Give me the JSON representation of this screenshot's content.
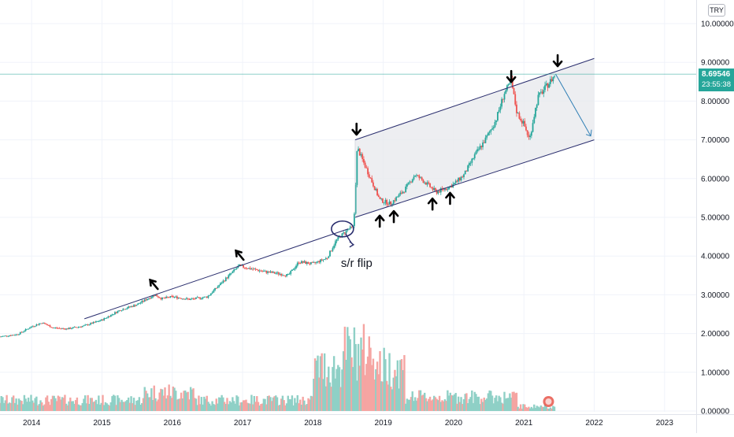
{
  "currency": "TRY",
  "last_price": {
    "value": "8.69546",
    "countdown": "23:55:38",
    "color": "#26a69a"
  },
  "annotation_text": "s/r flip",
  "colors": {
    "up": "#26a69a",
    "down": "#ef5350",
    "up_volume": "#8fd0c6",
    "down_volume": "#f5a5a2",
    "trendline": "#2a2e6e",
    "channel_fill": "#e9eaee",
    "projection": "#2f7fb5",
    "arrow": "#000000",
    "last_price_line": "#26a69a"
  },
  "chart_data": {
    "type": "candlestick",
    "title": "",
    "x_ticks": [
      "2014",
      "2015",
      "2016",
      "2017",
      "2018",
      "2019",
      "2020",
      "2021",
      "2022",
      "2023"
    ],
    "y_ticks": [
      "0.00000",
      "1.00000",
      "2.00000",
      "3.00000",
      "4.00000",
      "5.00000",
      "6.00000",
      "7.00000",
      "8.00000",
      "9.00000",
      "10.00000"
    ],
    "ylim": [
      0,
      10.2
    ],
    "xlim": [
      2013.55,
      2023.45
    ],
    "last_price": 8.69546,
    "price_path": [
      [
        2013.55,
        1.92
      ],
      [
        2013.8,
        1.98
      ],
      [
        2014.0,
        2.18
      ],
      [
        2014.15,
        2.28
      ],
      [
        2014.3,
        2.15
      ],
      [
        2014.5,
        2.12
      ],
      [
        2014.75,
        2.2
      ],
      [
        2015.0,
        2.35
      ],
      [
        2015.25,
        2.6
      ],
      [
        2015.5,
        2.75
      ],
      [
        2015.65,
        2.9
      ],
      [
        2015.75,
        3.0
      ],
      [
        2015.85,
        2.9
      ],
      [
        2016.0,
        2.95
      ],
      [
        2016.25,
        2.88
      ],
      [
        2016.5,
        2.95
      ],
      [
        2016.75,
        3.4
      ],
      [
        2016.95,
        3.75
      ],
      [
        2017.05,
        3.7
      ],
      [
        2017.3,
        3.6
      ],
      [
        2017.5,
        3.55
      ],
      [
        2017.65,
        3.5
      ],
      [
        2017.8,
        3.85
      ],
      [
        2018.0,
        3.8
      ],
      [
        2018.2,
        3.95
      ],
      [
        2018.33,
        4.4
      ],
      [
        2018.5,
        4.7
      ],
      [
        2018.58,
        4.75
      ],
      [
        2018.63,
        6.8
      ],
      [
        2018.7,
        6.5
      ],
      [
        2018.82,
        6.0
      ],
      [
        2018.95,
        5.45
      ],
      [
        2019.1,
        5.35
      ],
      [
        2019.3,
        5.7
      ],
      [
        2019.45,
        6.1
      ],
      [
        2019.6,
        5.9
      ],
      [
        2019.75,
        5.65
      ],
      [
        2019.9,
        5.75
      ],
      [
        2020.0,
        5.85
      ],
      [
        2020.15,
        6.1
      ],
      [
        2020.3,
        6.6
      ],
      [
        2020.45,
        7.0
      ],
      [
        2020.6,
        7.5
      ],
      [
        2020.72,
        8.2
      ],
      [
        2020.82,
        8.5
      ],
      [
        2020.9,
        7.7
      ],
      [
        2021.0,
        7.4
      ],
      [
        2021.08,
        7.0
      ],
      [
        2021.13,
        7.5
      ],
      [
        2021.2,
        8.1
      ],
      [
        2021.35,
        8.45
      ],
      [
        2021.45,
        8.69546
      ]
    ],
    "annotations": {
      "support_trendline": [
        [
          2014.75,
          2.38
        ],
        [
          2018.5,
          4.7
        ]
      ],
      "channel_upper": [
        [
          2018.6,
          7.0
        ],
        [
          2022.0,
          9.1
        ]
      ],
      "channel_lower": [
        [
          2018.6,
          5.0
        ],
        [
          2022.0,
          7.0
        ]
      ],
      "projection_arrow": [
        [
          2021.45,
          8.7
        ],
        [
          2021.95,
          7.1
        ]
      ],
      "sell_arrows_x": [
        2018.62,
        2020.82,
        2021.48
      ],
      "buy_arrows_x": [
        2018.95,
        2019.15,
        2019.7,
        2019.95
      ],
      "tilted_markers_x": [
        2015.75,
        2016.97
      ]
    }
  }
}
